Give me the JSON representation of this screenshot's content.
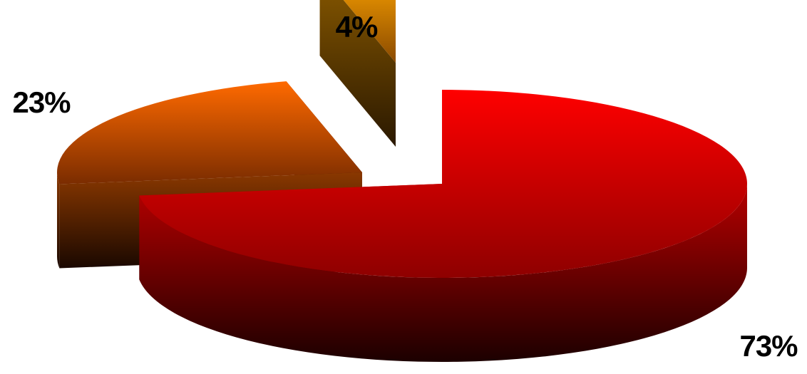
{
  "chart_data": {
    "type": "pie",
    "style": "3d-exploded",
    "values": [
      73,
      23,
      4
    ],
    "data_labels": [
      "73%",
      "23%",
      "4%"
    ],
    "colors": [
      "#ff0000",
      "#ff6a00",
      "#ffa500"
    ],
    "legend": "none",
    "grid": false
  }
}
